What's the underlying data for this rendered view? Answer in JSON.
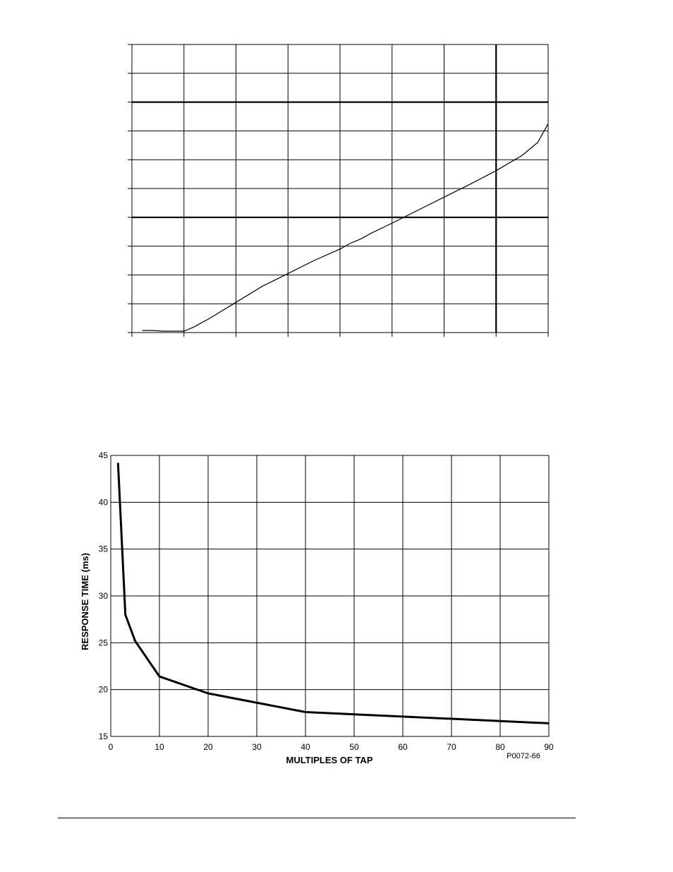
{
  "chart_data": [
    {
      "type": "line",
      "title": "",
      "xlabel": "",
      "ylabel": "",
      "xlim": [
        0,
        80
      ],
      "ylim": [
        0,
        100
      ],
      "grid": true,
      "x_ticks": [
        0,
        10,
        20,
        30,
        40,
        50,
        60,
        70,
        80
      ],
      "y_ticks": [
        0,
        10,
        20,
        30,
        40,
        50,
        60,
        70,
        80,
        90,
        100
      ],
      "series": [
        {
          "x": [
            2,
            4,
            6,
            8,
            10,
            12,
            15,
            20,
            25,
            30,
            35,
            40,
            42,
            44,
            46,
            50,
            55,
            60,
            65,
            70,
            75,
            78,
            80
          ],
          "y": [
            0.7,
            0.7,
            0.5,
            0.5,
            0.5,
            2,
            5,
            10.5,
            16,
            20.5,
            25,
            29,
            31,
            32.5,
            34.5,
            38,
            42.5,
            47,
            51.5,
            56.2,
            61.5,
            66,
            72.5
          ]
        }
      ],
      "line_color": "#000000"
    },
    {
      "type": "line",
      "title": "",
      "xlabel": "MULTIPLES OF TAP",
      "ylabel": "RESPONSE TIME (ms)",
      "xlim": [
        0,
        90
      ],
      "ylim": [
        15,
        45
      ],
      "grid": true,
      "x_ticks": [
        0,
        10,
        20,
        30,
        40,
        50,
        60,
        70,
        80,
        90
      ],
      "y_ticks": [
        15,
        20,
        25,
        30,
        35,
        40,
        45
      ],
      "figure_id": "P0072-66",
      "series": [
        {
          "x": [
            1.5,
            3,
            5,
            10,
            20,
            40,
            90
          ],
          "y": [
            44.2,
            28,
            25.2,
            21.4,
            19.6,
            17.6,
            16.4
          ]
        }
      ],
      "line_color": "#000000"
    }
  ]
}
